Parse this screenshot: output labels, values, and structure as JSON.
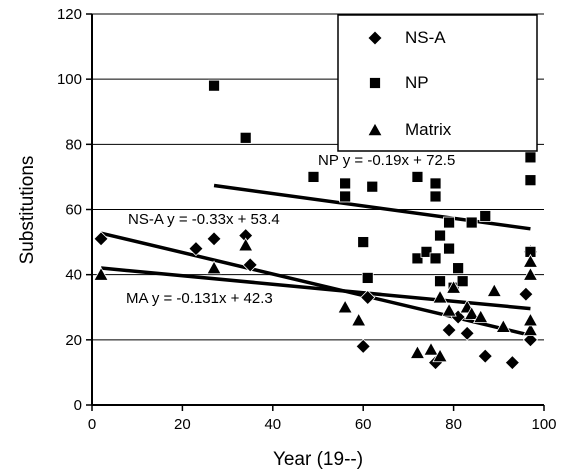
{
  "chart_data": {
    "type": "scatter",
    "xlabel": "Year (19--)",
    "ylabel": "Substitutions",
    "xlim": [
      0,
      100
    ],
    "ylim": [
      0,
      120
    ],
    "xticks": [
      0,
      20,
      40,
      60,
      80,
      100
    ],
    "yticks": [
      0,
      20,
      40,
      60,
      80,
      100,
      120
    ],
    "grid": "horizontal",
    "legend_position": "top-right",
    "series": [
      {
        "name": "NS-A",
        "marker": "diamond",
        "color": "#000000",
        "points": [
          [
            2,
            51
          ],
          [
            23,
            48
          ],
          [
            27,
            51
          ],
          [
            34,
            52
          ],
          [
            35,
            43
          ],
          [
            60,
            18
          ],
          [
            61,
            33
          ],
          [
            76,
            13
          ],
          [
            79,
            23
          ],
          [
            81,
            27
          ],
          [
            83,
            22
          ],
          [
            87,
            15
          ],
          [
            93,
            13
          ],
          [
            96,
            34
          ],
          [
            97,
            20
          ],
          [
            97,
            47
          ]
        ]
      },
      {
        "name": "NP",
        "marker": "square",
        "color": "#000000",
        "points": [
          [
            27,
            98
          ],
          [
            34,
            82
          ],
          [
            49,
            70
          ],
          [
            56,
            68
          ],
          [
            56,
            64
          ],
          [
            60,
            50
          ],
          [
            61,
            39
          ],
          [
            62,
            67
          ],
          [
            72,
            70
          ],
          [
            72,
            45
          ],
          [
            74,
            47
          ],
          [
            76,
            68
          ],
          [
            76,
            64
          ],
          [
            76,
            45
          ],
          [
            77,
            52
          ],
          [
            77,
            38
          ],
          [
            79,
            56
          ],
          [
            79,
            48
          ],
          [
            80,
            36
          ],
          [
            81,
            42
          ],
          [
            82,
            38
          ],
          [
            84,
            56
          ],
          [
            87,
            58
          ],
          [
            97,
            89
          ],
          [
            97,
            82
          ],
          [
            97,
            76
          ],
          [
            97,
            69
          ],
          [
            97,
            47
          ]
        ]
      },
      {
        "name": "Matrix",
        "marker": "triangle",
        "color": "#000000",
        "points": [
          [
            2,
            40
          ],
          [
            27,
            42
          ],
          [
            34,
            49
          ],
          [
            56,
            30
          ],
          [
            59,
            26
          ],
          [
            72,
            16
          ],
          [
            75,
            17
          ],
          [
            77,
            15
          ],
          [
            77,
            33
          ],
          [
            79,
            29
          ],
          [
            80,
            36
          ],
          [
            83,
            30
          ],
          [
            84,
            28
          ],
          [
            86,
            27
          ],
          [
            89,
            35
          ],
          [
            91,
            24
          ],
          [
            97,
            23
          ],
          [
            97,
            26
          ],
          [
            97,
            40
          ],
          [
            97,
            44
          ]
        ]
      }
    ],
    "trendlines": [
      {
        "label": "NP y = -0.19x + 72.5",
        "slope": -0.19,
        "intercept": 72.5,
        "x_range": [
          27,
          97
        ]
      },
      {
        "label": "NS-A y = -0.33x + 53.4",
        "slope": -0.33,
        "intercept": 53.4,
        "x_range": [
          2,
          97
        ]
      },
      {
        "label": "MA y = -0.131x + 42.3",
        "slope": -0.131,
        "intercept": 42.3,
        "x_range": [
          2,
          97
        ]
      }
    ],
    "legend": [
      {
        "label": "NS-A",
        "marker": "diamond"
      },
      {
        "label": "NP",
        "marker": "square"
      },
      {
        "label": "Matrix",
        "marker": "triangle"
      }
    ]
  }
}
